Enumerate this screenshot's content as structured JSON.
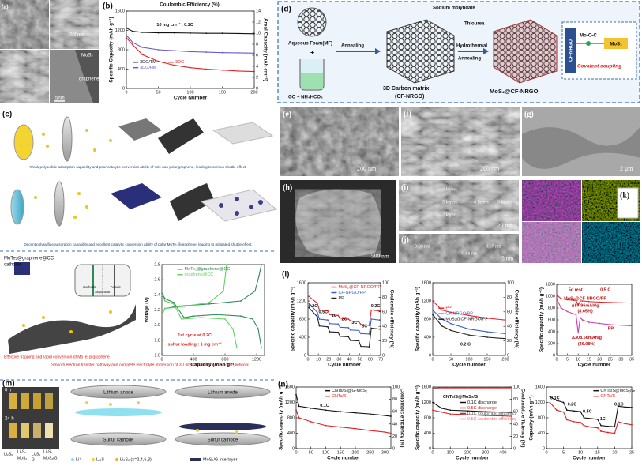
{
  "a": {
    "label": "(a)",
    "scale_top": "200nm",
    "mos2": "MoS₂",
    "graphene": "graphene",
    "scale_bottom": "5nm"
  },
  "c": {
    "label": "(c)",
    "caption_top": "Weak polysulfide adsorption capability and poor catalytic conversion ability of sole non-polar graphene, leading to serious shuttle effect.",
    "caption_bottom": "Decent polysulfide adsorption capability and excellent catalytic conversion ability of polar MoTe₂@graphene, leading to mitigated shuttle effect."
  },
  "d": {
    "label": "(d)",
    "foam": "Aqueous Foam(MF)",
    "go": "GO + NH₄HCO₃",
    "annealing1": "Annealing",
    "matrix": "3D Carbon matrix",
    "matrix_abbr": "(CF-NRGO)",
    "molybdate": "Sodium molybdate",
    "thiourea": "Thiourea",
    "hydrothermal": "Hydrothermal",
    "annealing2": "Annealing",
    "product": "MoS₂@CF-NRGO",
    "inset_cf": "CF-NRGO",
    "inset_bond": "Mo-O-C",
    "inset_mos2": "MoS₂",
    "inset_caption": "Covalent coupling"
  },
  "e": {
    "label": "(e)",
    "scale": "200 nm"
  },
  "f": {
    "label": "(f)",
    "scale": "200 nm"
  },
  "g": {
    "label": "(g)",
    "scale": "2 μm"
  },
  "h": {
    "label": "(h)",
    "scale": "500 nm"
  },
  "i": {
    "label": "(i)",
    "l3": "3 layers",
    "l5": "5 layers",
    "l4": "4 layers",
    "l3b": "3 layers",
    "l2": "2 layer",
    "scale": "20 nm"
  },
  "j": {
    "label": "(j)",
    "d1": "0.68 nm",
    "d2": "0.67 nm",
    "d3": "0.68 nm",
    "scale": "5 nm"
  },
  "k": {
    "label": "(k)"
  },
  "mote2": {
    "cathode": "MoTe₂@graphene@CC",
    "cathode_word": "cathode",
    "cell_cathode": "Cathode",
    "cell_separator": "Separator",
    "cell_anode": "Anode",
    "trap": "Effective trapping and rapid conversion of MoTe₂@graphene",
    "smooth": "Smooth electron transfer pathway and complete electrolyte immersion of 3D interconnected carbon cloth network"
  },
  "m": {
    "label": "(m)",
    "t0": "0 h",
    "t24": "24 h",
    "vial1": "Li₂S₆",
    "vial2": "Li₂S₆",
    "vial3": "Li₂S₆",
    "vial4": "Li₂S₆",
    "plus1": "MoS₂",
    "plus2": "G",
    "plus3": "MoS₂/G",
    "anode_left": "Lithium anode",
    "cathode_left": "Sulfur cathode",
    "anode_right": "Lithium anode",
    "cathode_right": "Sulfur cathode",
    "legend_li": "Li⁺",
    "legend_li2s": "Li₂S",
    "legend_li2sx": "Li₂Sₓ (x=2,4,6,8)",
    "legend_interlayer": "MoS₂/G interlayer"
  },
  "charts": [
    {
      "type": "line",
      "label": "(b)",
      "title": "Coulombic Efficiency (%)",
      "xlabel": "Cycle Number",
      "ylabel": "Specific Capacity (mAh g⁻¹)",
      "y2label": "Areal Capacity (mAh cm⁻²)",
      "xlim": [
        0,
        200
      ],
      "xticks": [
        0,
        50,
        100,
        150,
        200
      ],
      "ylim": [
        0,
        1600
      ],
      "yticks": [
        0,
        400,
        800,
        1200,
        1600
      ],
      "y2lim": [
        0,
        14
      ],
      "y2ticks": [
        0,
        2,
        4,
        6,
        8,
        10,
        12,
        14
      ],
      "notes": [
        "10 mg cm⁻² , 0.1C"
      ],
      "series": [
        {
          "name": "3DG/TM",
          "color": "#111111",
          "x": [
            0,
            10,
            25,
            50,
            75,
            100,
            125,
            150,
            175,
            200
          ],
          "values": [
            1250,
            1180,
            1160,
            1150,
            1150,
            1145,
            1140,
            1140,
            1135,
            1130
          ]
        },
        {
          "name": "3DG",
          "color": "#e02020",
          "x": [
            0,
            10,
            25,
            50,
            75,
            100,
            125,
            150,
            175,
            200
          ],
          "values": [
            1050,
            900,
            700,
            560,
            480,
            430,
            400,
            380,
            360,
            350
          ]
        },
        {
          "name": "3DG/HM",
          "color": "#6a5acd",
          "x": [
            0,
            10,
            25,
            50,
            75,
            100,
            125,
            150,
            175,
            200
          ],
          "values": [
            1100,
            950,
            850,
            800,
            780,
            760,
            750,
            740,
            735,
            730
          ]
        }
      ]
    },
    {
      "type": "line",
      "xlabel": "Capacity (mAh g⁻¹)",
      "ylabel": "Voltage (V)",
      "xlim": [
        0,
        1300
      ],
      "xticks": [
        0,
        400,
        800,
        1200
      ],
      "ylim": [
        1.6,
        2.8
      ],
      "yticks": [
        1.6,
        1.8,
        {
          "value": 2,
          "label": "2.0"
        },
        2.2,
        2.4,
        2.6,
        2.8
      ],
      "notes": [
        "1st cycle at 0.2C",
        "sulfur loading : 1 mg cm⁻²"
      ],
      "series": [
        {
          "name": "MoTe₂@graphene@CC",
          "color": "#2e8b57",
          "x": [
            0,
            40,
            150,
            280,
            400,
            700,
            1000,
            1150,
            1220,
            1260,
            null,
            0,
            40,
            200,
            600,
            1000,
            1180,
            1230,
            1260
          ],
          "values": [
            2.42,
            2.35,
            2.3,
            2.1,
            2.12,
            2.14,
            2.12,
            2.08,
            1.95,
            1.7,
            null,
            2.15,
            2.22,
            2.25,
            2.28,
            2.32,
            2.45,
            2.65,
            2.8
          ]
        },
        {
          "name": "graphene@CC",
          "color": "#5fd35f",
          "x": [
            0,
            40,
            150,
            250,
            500,
            800,
            900,
            950,
            null,
            0,
            40,
            300,
            600,
            780,
            820
          ],
          "values": [
            2.4,
            2.32,
            2.28,
            2.08,
            2.1,
            2.08,
            1.95,
            1.7,
            null,
            2.15,
            2.22,
            2.25,
            2.3,
            2.45,
            2.8
          ]
        }
      ]
    },
    {
      "type": "line",
      "label": "(l)",
      "xlabel": "Cycle number",
      "ylabel": "Specific capacity (mAh g⁻¹)",
      "y2label": "Coulombic efficiency (%)",
      "xlim": [
        0,
        70
      ],
      "xticks": [
        0,
        10,
        20,
        30,
        40,
        50,
        60,
        70
      ],
      "ylim": [
        0,
        1600
      ],
      "yticks": [
        0,
        400,
        800,
        1200,
        1600
      ],
      "y2lim": [
        0,
        100
      ],
      "y2ticks": [
        0,
        20,
        40,
        60,
        80,
        100
      ],
      "notes": [
        "0.2C",
        "0.5C",
        "1C",
        "2C",
        "3C",
        "5C",
        "0.2C"
      ],
      "series": [
        {
          "name": "MoS₂@CF-NRGO/PP",
          "color": "#e8242a",
          "x": [
            1,
            9,
            11,
            19,
            21,
            29,
            31,
            39,
            41,
            49,
            51,
            59,
            61,
            69
          ],
          "values": [
            1300,
            1150,
            1000,
            980,
            900,
            880,
            820,
            800,
            760,
            740,
            680,
            660,
            1000,
            980
          ]
        },
        {
          "name": "CF-NRGO/PP",
          "color": "#3a5fcd",
          "x": [
            1,
            9,
            11,
            19,
            21,
            29,
            31,
            39,
            41,
            49,
            51,
            59,
            61,
            69
          ],
          "values": [
            1150,
            950,
            800,
            780,
            700,
            690,
            620,
            610,
            560,
            550,
            480,
            470,
            800,
            780
          ]
        },
        {
          "name": "PP",
          "color": "#222222",
          "x": [
            1,
            9,
            11,
            19,
            21,
            29,
            31,
            39,
            41,
            49,
            51,
            59,
            61,
            69
          ],
          "values": [
            1050,
            850,
            650,
            630,
            520,
            510,
            420,
            410,
            330,
            320,
            200,
            190,
            600,
            580
          ]
        }
      ]
    },
    {
      "type": "line",
      "xlabel": "Cycle number",
      "ylabel": "Specific capacity (mAh g⁻¹)",
      "y2label": "Coulombic efficiency (%)",
      "xlim": [
        0,
        200
      ],
      "xticks": [
        0,
        50,
        100,
        150,
        200
      ],
      "ylim": [
        0,
        1600
      ],
      "yticks": [
        0,
        400,
        800,
        1200,
        1600
      ],
      "y2lim": [
        0,
        100
      ],
      "y2ticks": [
        0,
        20,
        40,
        60,
        80,
        100
      ],
      "notes": [
        "0.2 C"
      ],
      "series": [
        {
          "name": "PP",
          "color": "#e8242a",
          "x": [
            0,
            25,
            50,
            100,
            150,
            200
          ],
          "values": [
            1200,
            1000,
            950,
            880,
            820,
            780
          ]
        },
        {
          "name": "CF-NRGO/PP",
          "color": "#3a5fcd",
          "x": [
            0,
            25,
            50,
            100,
            150,
            200
          ],
          "values": [
            1000,
            800,
            700,
            580,
            520,
            480
          ]
        },
        {
          "name": "MoS₂@CF-NRGO/PP",
          "color": "#222222",
          "x": [
            0,
            25,
            50,
            100,
            150,
            200
          ],
          "values": [
            900,
            650,
            550,
            450,
            400,
            370
          ]
        }
      ]
    },
    {
      "type": "line",
      "xlabel": "Cycle number",
      "ylabel": "Specific capacity (mAh g⁻¹)",
      "xlim": [
        0,
        35
      ],
      "xticks": [
        0,
        5,
        10,
        15,
        20,
        25,
        30,
        35
      ],
      "ylim": [
        0,
        1200
      ],
      "yticks": [
        0,
        200,
        400,
        600,
        800,
        1000,
        1200
      ],
      "notes": [
        "5d rest",
        "0.5 C",
        "MoS₂@CF-NRGO/PP",
        "Δ87.96mAh/g",
        "(8.65%)",
        "PP",
        "Δ308.66mAh/g",
        "(46.08%)"
      ],
      "series": [
        {
          "color": "#e8242a",
          "x": [
            0,
            2,
            5,
            8,
            9,
            10,
            11,
            12,
            15,
            20,
            25,
            30,
            35
          ],
          "values": [
            1020,
            960,
            940,
            930,
            930,
            850,
            920,
            920,
            910,
            900,
            895,
            890,
            885
          ]
        },
        {
          "color": "#d040b0",
          "x": [
            0,
            2,
            5,
            8,
            9,
            10,
            11,
            12,
            15,
            20,
            25,
            30,
            35
          ],
          "values": [
            960,
            800,
            740,
            700,
            690,
            380,
            640,
            600,
            560,
            540,
            520,
            510,
            500
          ]
        }
      ]
    },
    {
      "type": "line",
      "label": "(n)",
      "xlabel": "Cycle number",
      "ylabel": "Specific capacity (mAh g⁻¹)",
      "y2label": "Coulombic efficiency (%)",
      "xlim": [
        0,
        320
      ],
      "xticks": [
        0,
        50,
        100,
        150,
        200,
        250,
        300
      ],
      "ylim": [
        0,
        1600
      ],
      "yticks": [
        0,
        400,
        800,
        1200,
        1600
      ],
      "y2lim": [
        0,
        100
      ],
      "y2ticks": [
        0,
        20,
        40,
        60,
        80,
        100
      ],
      "notes": [
        "0.1C"
      ],
      "series": [
        {
          "name": "CNTs/Si@G-MoS₂",
          "color": "#111111",
          "x": [
            0,
            10,
            50,
            100,
            150,
            200,
            250,
            300,
            320
          ],
          "values": [
            1400,
            1100,
            1050,
            1000,
            960,
            930,
            900,
            860,
            840
          ]
        },
        {
          "name": "CNTs/S",
          "color": "#e02020",
          "x": [
            0,
            10,
            50,
            100,
            150,
            200,
            250,
            300,
            320
          ],
          "values": [
            1000,
            800,
            700,
            600,
            560,
            520,
            470,
            430,
            400
          ]
        }
      ]
    },
    {
      "type": "line",
      "xlabel": "Cycle number",
      "ylabel": "Specific capacity (mAh g⁻¹)",
      "y2label": "Coulombic efficiency (%)",
      "xlim": [
        0,
        450
      ],
      "xticks": [
        0,
        100,
        200,
        300,
        400
      ],
      "ylim": [
        0,
        1600
      ],
      "yticks": [
        0,
        400,
        800,
        1200,
        1600
      ],
      "y2lim": [
        0,
        100
      ],
      "y2ticks": [
        0,
        20,
        40,
        60,
        80,
        100
      ],
      "notes": [
        "CNTs/S@MoS₂/G"
      ],
      "series": [
        {
          "name": "0.1C discharge",
          "color": "#111111",
          "x": [
            0,
            50,
            100,
            200,
            300,
            400,
            450
          ],
          "values": [
            1200,
            1050,
            1000,
            980,
            960,
            950,
            940
          ]
        },
        {
          "name": "0.5C discharge",
          "color": "#e02020",
          "x": [
            0,
            50,
            100,
            200,
            300,
            400,
            450
          ],
          "values": [
            1000,
            950,
            900,
            880,
            860,
            850,
            840
          ]
        },
        {
          "name": "0.1C coulombic efficiency",
          "color": "#555555",
          "axis": "y2",
          "x": [
            0,
            50,
            100,
            200,
            300,
            400,
            450
          ],
          "values": [
            98,
            99,
            99,
            99,
            99,
            99,
            99
          ]
        },
        {
          "name": "0.5C coulombic efficiency",
          "color": "#f07070",
          "axis": "y2",
          "x": [
            0,
            50,
            100,
            200,
            300,
            400,
            450
          ],
          "values": [
            97,
            98,
            98,
            98,
            98,
            98,
            98
          ]
        }
      ]
    },
    {
      "type": "line",
      "xlabel": "Cycle number",
      "ylabel": "Capacity (mAh g⁻¹)",
      "xlim": [
        0,
        25
      ],
      "xticks": [
        0,
        5,
        10,
        15,
        20,
        25
      ],
      "ylim": [
        0,
        1600
      ],
      "yticks": [
        0,
        400,
        800,
        1200,
        1600
      ],
      "notes": [
        "0.1C",
        "0.2C",
        "0.5C",
        "1C",
        "0.1C"
      ],
      "series": [
        {
          "name": "CNTs/S@MoS₂/G",
          "color": "#111111",
          "x": [
            1,
            3,
            5,
            6,
            8,
            10,
            11,
            13,
            15,
            16,
            18,
            20,
            21,
            23,
            25
          ],
          "values": [
            1350,
            1250,
            1200,
            1000,
            980,
            960,
            800,
            780,
            760,
            600,
            580,
            570,
            1100,
            1080,
            1070
          ]
        },
        {
          "name": "CNTs/S",
          "color": "#e02020",
          "x": [
            1,
            3,
            5,
            6,
            8,
            10,
            11,
            13,
            15,
            16,
            18,
            20,
            21,
            23,
            25
          ],
          "values": [
            1200,
            1000,
            950,
            750,
            700,
            680,
            600,
            560,
            540,
            450,
            420,
            400,
            700,
            650,
            620
          ]
        }
      ]
    }
  ]
}
